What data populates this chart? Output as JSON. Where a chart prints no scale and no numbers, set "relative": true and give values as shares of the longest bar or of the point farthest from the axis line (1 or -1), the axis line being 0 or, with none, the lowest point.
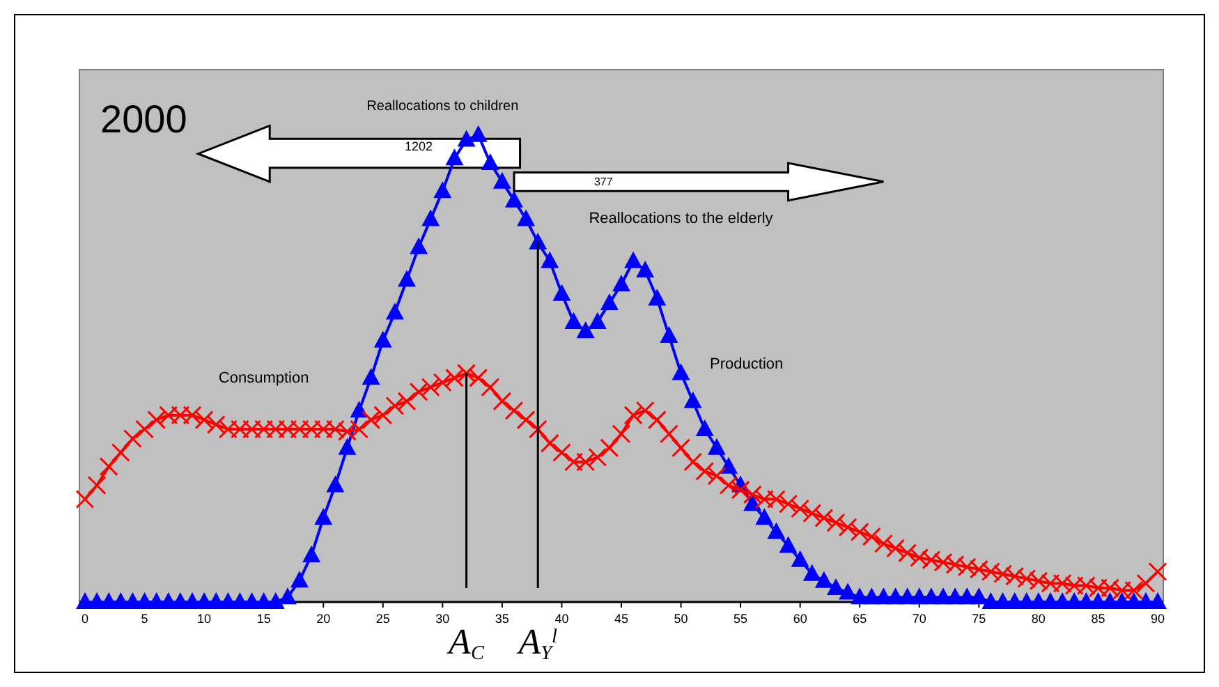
{
  "chart_data": {
    "type": "line",
    "title": "2000",
    "relative": true,
    "xlim": [
      0,
      90
    ],
    "xticks": [
      0,
      5,
      10,
      15,
      20,
      25,
      30,
      35,
      40,
      45,
      50,
      55,
      60,
      65,
      70,
      75,
      80,
      85,
      90
    ],
    "tick_labels": "x",
    "grid": false,
    "legend": false,
    "line_style": "solid",
    "x": [
      0,
      1,
      2,
      3,
      4,
      5,
      6,
      7,
      8,
      9,
      10,
      11,
      12,
      13,
      14,
      15,
      16,
      17,
      18,
      19,
      20,
      21,
      22,
      23,
      24,
      25,
      26,
      27,
      28,
      29,
      30,
      31,
      32,
      33,
      34,
      35,
      36,
      37,
      38,
      39,
      40,
      41,
      42,
      43,
      44,
      45,
      46,
      47,
      48,
      49,
      50,
      51,
      52,
      53,
      54,
      55,
      56,
      57,
      58,
      59,
      60,
      61,
      62,
      63,
      64,
      65,
      66,
      67,
      68,
      69,
      70,
      71,
      72,
      73,
      74,
      75,
      76,
      77,
      78,
      79,
      80,
      81,
      82,
      83,
      84,
      85,
      86,
      87,
      88,
      89,
      90
    ],
    "series": [
      {
        "name": "Production",
        "color": "#0000ff",
        "marker": "triangle",
        "values": [
          0,
          0,
          0,
          0,
          0,
          0,
          0,
          0,
          0,
          0,
          0,
          0,
          0,
          0,
          0,
          0,
          0,
          0.01,
          0.046,
          0.1,
          0.18,
          0.25,
          0.33,
          0.41,
          0.48,
          0.56,
          0.62,
          0.69,
          0.76,
          0.82,
          0.88,
          0.95,
          0.99,
          1,
          0.94,
          0.9,
          0.86,
          0.82,
          0.77,
          0.73,
          0.66,
          0.6,
          0.58,
          0.6,
          0.64,
          0.68,
          0.73,
          0.71,
          0.65,
          0.57,
          0.49,
          0.43,
          0.37,
          0.33,
          0.29,
          0.25,
          0.21,
          0.18,
          0.15,
          0.12,
          0.09,
          0.06,
          0.045,
          0.03,
          0.02,
          0.01,
          0.01,
          0.01,
          0.01,
          0.01,
          0.01,
          0.01,
          0.01,
          0.01,
          0.01,
          0.01,
          0,
          0,
          0,
          0,
          0,
          0,
          0,
          0,
          0,
          0,
          0,
          0,
          0,
          0,
          0
        ]
      },
      {
        "name": "Consumption",
        "color": "#ff0000",
        "marker": "cross",
        "values": [
          0.22,
          0.25,
          0.29,
          0.32,
          0.35,
          0.37,
          0.39,
          0.4,
          0.4,
          0.4,
          0.39,
          0.38,
          0.37,
          0.37,
          0.37,
          0.37,
          0.37,
          0.37,
          0.37,
          0.37,
          0.37,
          0.37,
          0.365,
          0.37,
          0.39,
          0.4,
          0.42,
          0.43,
          0.45,
          0.46,
          0.47,
          0.48,
          0.49,
          0.48,
          0.46,
          0.43,
          0.41,
          0.39,
          0.37,
          0.34,
          0.32,
          0.3,
          0.3,
          0.31,
          0.33,
          0.36,
          0.4,
          0.41,
          0.39,
          0.36,
          0.33,
          0.3,
          0.28,
          0.27,
          0.25,
          0.24,
          0.23,
          0.22,
          0.22,
          0.21,
          0.2,
          0.19,
          0.18,
          0.17,
          0.16,
          0.15,
          0.14,
          0.125,
          0.115,
          0.105,
          0.095,
          0.09,
          0.085,
          0.08,
          0.075,
          0.07,
          0.065,
          0.06,
          0.055,
          0.05,
          0.045,
          0.04,
          0.04,
          0.035,
          0.035,
          0.03,
          0.03,
          0.025,
          0.025,
          0.04,
          0.065
        ]
      }
    ],
    "ref_lines": [
      {
        "axis": "x",
        "value": 32,
        "label": "A$_{C}$",
        "color": "#000000"
      },
      {
        "axis": "x",
        "value": 38,
        "label": "A$_{Y}$$^{l}$",
        "color": "#000000"
      }
    ],
    "annotations": [
      "Reallocations to children",
      "1202",
      "377",
      "Reallocations to the elderly"
    ]
  }
}
